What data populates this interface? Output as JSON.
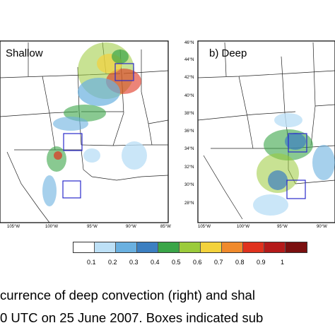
{
  "panels": {
    "left": {
      "label": "Shallow",
      "lon_ticks": [
        "105°W",
        "100°W",
        "95°W",
        "90°W",
        "85°W"
      ]
    },
    "right": {
      "label": "b) Deep",
      "lat_ticks": [
        "46°N",
        "44°N",
        "42°N",
        "40°N",
        "38°N",
        "36°N",
        "34°N",
        "32°N",
        "30°N",
        "28°N"
      ],
      "lon_ticks": [
        "105°W",
        "100°W",
        "95°W",
        "90°W"
      ]
    }
  },
  "colorbar": {
    "labels": [
      "0.1",
      "0.2",
      "0.3",
      "0.4",
      "0.5",
      "0.6",
      "0.7",
      "0.8",
      "0.9",
      "1"
    ],
    "colors": [
      "#ffffff",
      "#bde0f6",
      "#6ab0e0",
      "#3c7fc1",
      "#3aa548",
      "#9bcb3b",
      "#f3d23c",
      "#f08a2c",
      "#e0321e",
      "#b41a1a",
      "#7a0f0f"
    ]
  },
  "caption": {
    "line1": "currence of deep convection (right) and shal",
    "line2": "0 UTC on 25 June 2007. Boxes indicated sub"
  }
}
